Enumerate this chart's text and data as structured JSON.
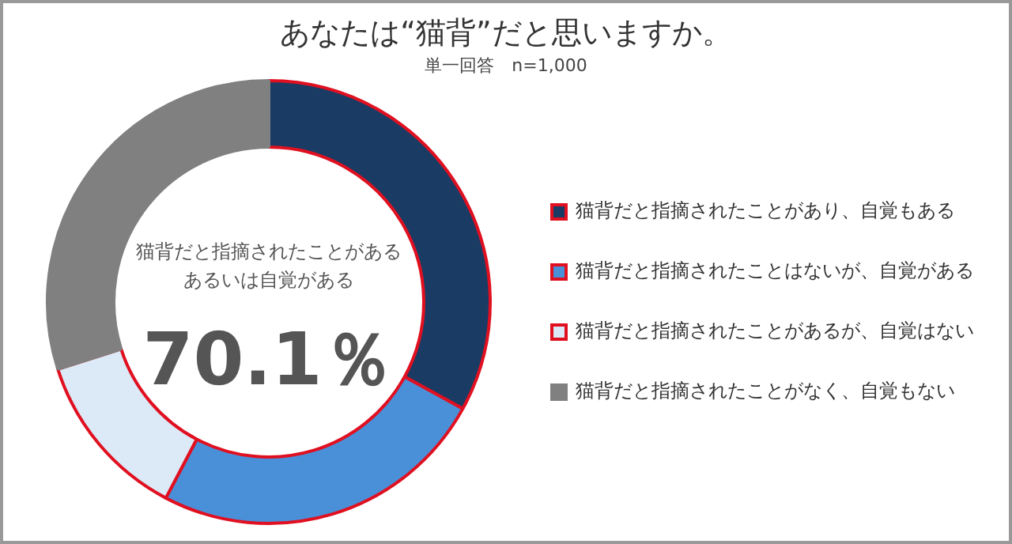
{
  "chart_data": {
    "type": "donut",
    "title": "あなたは“猫背”だと思いますか。",
    "subtitle": "単一回答　n=1,000",
    "categories": [
      "猫背だと指摘されたことがあり、自覚もある",
      "猫背だと指摘されたことはないが、自覚がある",
      "猫背だと指摘されたことがあるが、自覚はない",
      "猫背だと指摘されたことがなく、自覚もない"
    ],
    "values": [
      33.0,
      24.7,
      12.4,
      29.9
    ],
    "colors": [
      "#1a3c64",
      "#4a90d9",
      "#dce9f6",
      "#808080"
    ],
    "annotations": [
      "猫背だと指摘されたことがある",
      "あるいは自覚がある",
      "70.1％"
    ],
    "legend": "right"
  }
}
